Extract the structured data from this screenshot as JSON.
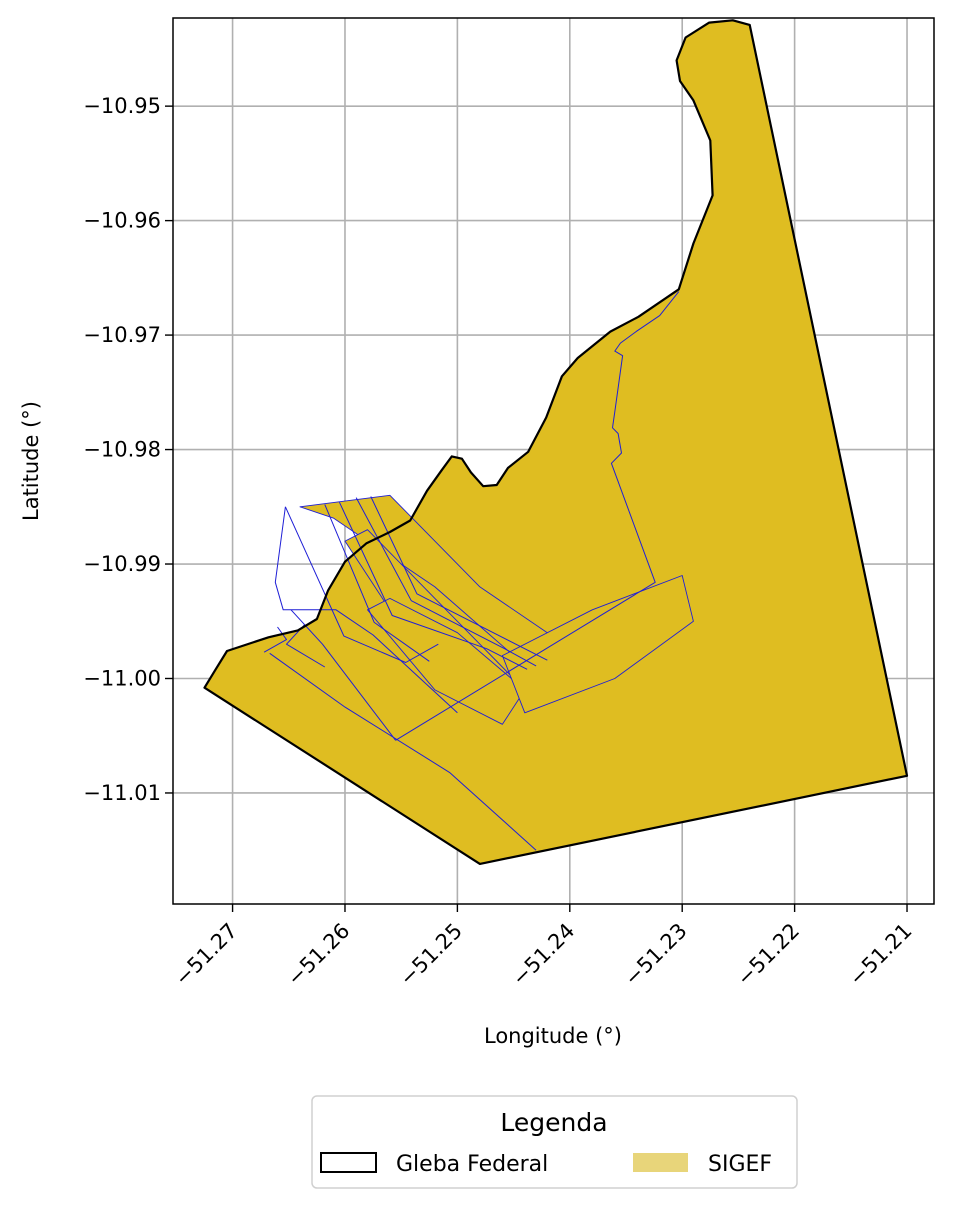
{
  "chart_data": {
    "type": "map",
    "xlabel": "Longitude (°)",
    "ylabel": "Latitude (°)",
    "xlim": [
      -51.2753,
      -51.2076
    ],
    "ylim": [
      -11.0197,
      -10.9423
    ],
    "grid": true,
    "x_ticks": [
      -51.27,
      -51.26,
      -51.25,
      -51.24,
      -51.23,
      -51.22,
      -51.21
    ],
    "x_tick_labels": [
      "−51.27",
      "−51.26",
      "−51.25",
      "−51.24",
      "−51.23",
      "−51.22",
      "−51.21"
    ],
    "y_ticks": [
      -10.95,
      -10.96,
      -10.97,
      -10.98,
      -10.99,
      -11.0,
      -11.01
    ],
    "y_tick_labels": [
      "−10.95",
      "−10.96",
      "−10.97",
      "−10.98",
      "−10.99",
      "−11.00",
      "−11.01"
    ],
    "legend": {
      "title": "Legenda",
      "placement": "bottom-center",
      "entries": [
        {
          "label": "Gleba Federal",
          "style": "outline",
          "color": "#000000"
        },
        {
          "label": "SIGEF",
          "style": "fill",
          "color": "#e8d57a"
        }
      ]
    },
    "layers": [
      {
        "name": "SIGEF",
        "fill": "#dfbd21",
        "parcel_edge_color": "#1f1fd6",
        "parcels": [
          [
            [
              -51.2725,
              -11.0008
            ],
            [
              -51.2715,
              -10.9992
            ],
            [
              -51.2705,
              -10.9976
            ],
            [
              -51.2668,
              -10.9964
            ],
            [
              -51.2642,
              -10.9958
            ],
            [
              -51.2625,
              -10.9948
            ],
            [
              -51.2615,
              -10.9923
            ],
            [
              -51.26,
              -10.9898
            ],
            [
              -51.2581,
              -10.9882
            ],
            [
              -51.256,
              -10.9872
            ],
            [
              -51.2542,
              -10.9862
            ],
            [
              -51.2527,
              -10.9836
            ],
            [
              -51.2514,
              -10.9818
            ],
            [
              -51.2505,
              -10.9806
            ],
            [
              -51.2496,
              -10.9808
            ],
            [
              -51.2488,
              -10.982
            ],
            [
              -51.2477,
              -10.9832
            ],
            [
              -51.2465,
              -10.9831
            ],
            [
              -51.2455,
              -10.9816
            ],
            [
              -51.2437,
              -10.9802
            ],
            [
              -51.2421,
              -10.9772
            ],
            [
              -51.2407,
              -10.9736
            ],
            [
              -51.2393,
              -10.972
            ],
            [
              -51.2364,
              -10.9697
            ],
            [
              -51.2339,
              -10.9684
            ],
            [
              -51.2303,
              -10.966
            ],
            [
              -51.229,
              -10.962
            ],
            [
              -51.2273,
              -10.9578
            ],
            [
              -51.2275,
              -10.953
            ],
            [
              -51.229,
              -10.9495
            ],
            [
              -51.2302,
              -10.9478
            ],
            [
              -51.2305,
              -10.946
            ],
            [
              -51.2297,
              -10.944
            ],
            [
              -51.2276,
              -10.9427
            ],
            [
              -51.2255,
              -10.9425
            ],
            [
              -51.224,
              -10.9429
            ],
            [
              -51.21,
              -11.0085
            ],
            [
              -51.248,
              -11.0162
            ],
            [
              -51.2725,
              -11.0008
            ]
          ],
          [
            [
              -51.264,
              -10.985
            ],
            [
              -51.261,
              -10.986
            ],
            [
              -51.252,
              -10.992
            ],
            [
              -51.245,
              -10.998
            ],
            [
              -51.242,
              -10.996
            ],
            [
              -51.248,
              -10.992
            ],
            [
              -51.256,
              -10.984
            ],
            [
              -51.264,
              -10.985
            ]
          ],
          [
            [
              -51.26,
              -10.988
            ],
            [
              -51.254,
              -10.997
            ],
            [
              -51.247,
              -11.001
            ],
            [
              -51.245,
              -11.0
            ],
            [
              -51.252,
              -10.993
            ],
            [
              -51.258,
              -10.987
            ],
            [
              -51.26,
              -10.988
            ]
          ],
          [
            [
              -51.258,
              -10.994
            ],
            [
              -51.252,
              -11.001
            ],
            [
              -51.246,
              -11.004
            ],
            [
              -51.244,
              -11.001
            ],
            [
              -51.25,
              -10.996
            ],
            [
              -51.256,
              -10.993
            ],
            [
              -51.258,
              -10.994
            ]
          ],
          [
            [
              -51.246,
              -10.998
            ],
            [
              -51.238,
              -10.994
            ],
            [
              -51.23,
              -10.991
            ],
            [
              -51.229,
              -10.995
            ],
            [
              -51.236,
              -11.0
            ],
            [
              -51.244,
              -11.003
            ],
            [
              -51.246,
              -10.998
            ]
          ]
        ],
        "sub_lines": [
          [
            [
              -51.2653,
              -10.985
            ],
            [
              -51.2601,
              -10.9963
            ],
            [
              -51.2546,
              -10.9986
            ],
            [
              -51.2517,
              -10.997
            ]
          ],
          [
            [
              -51.2618,
              -10.9848
            ],
            [
              -51.2574,
              -10.9951
            ],
            [
              -51.2525,
              -10.9985
            ]
          ],
          [
            [
              -51.2605,
              -10.9846
            ],
            [
              -51.2558,
              -10.9945
            ],
            [
              -51.2494,
              -10.9967
            ],
            [
              -51.2474,
              -10.9974
            ],
            [
              -51.2438,
              -10.9992
            ]
          ],
          [
            [
              -51.259,
              -10.9842
            ],
            [
              -51.2541,
              -10.9932
            ],
            [
              -51.2458,
              -10.9974
            ],
            [
              -51.243,
              -10.9989
            ]
          ],
          [
            [
              -51.2577,
              -10.9841
            ],
            [
              -51.2536,
              -10.9926
            ],
            [
              -51.242,
              -10.9984
            ]
          ],
          [
            [
              -51.2555,
              -11.0054
            ],
            [
              -51.2324,
              -10.9916
            ],
            [
              -51.2363,
              -10.9812
            ],
            [
              -51.2354,
              -10.9803
            ],
            [
              -51.2357,
              -10.9786
            ],
            [
              -51.2362,
              -10.9781
            ],
            [
              -51.236,
              -10.9767
            ],
            [
              -51.2353,
              -10.9718
            ],
            [
              -51.236,
              -10.9714
            ],
            [
              -51.2355,
              -10.9707
            ],
            [
              -51.2341,
              -10.9697
            ],
            [
              -51.232,
              -10.9683
            ],
            [
              -51.2303,
              -10.9662
            ]
          ],
          [
            [
              -51.2653,
              -10.985
            ],
            [
              -51.2662,
              -10.9916
            ],
            [
              -51.2655,
              -10.994
            ],
            [
              -51.2608,
              -10.994
            ],
            [
              -51.2575,
              -10.9962
            ],
            [
              -51.25,
              -11.003
            ]
          ],
          [
            [
              -51.2648,
              -10.994
            ],
            [
              -51.262,
              -10.997
            ],
            [
              -51.2555,
              -11.0054
            ]
          ],
          [
            [
              -51.2618,
              -10.999
            ],
            [
              -51.2652,
              -10.997
            ],
            [
              -51.2636,
              -10.9953
            ]
          ],
          [
            [
              -51.2672,
              -10.9977
            ],
            [
              -51.2652,
              -10.9966
            ],
            [
              -51.266,
              -10.9955
            ]
          ],
          [
            [
              -51.2667,
              -10.9978
            ],
            [
              -51.26,
              -11.0025
            ],
            [
              -51.2507,
              -11.0082
            ],
            [
              -51.243,
              -11.015
            ]
          ]
        ]
      },
      {
        "name": "Gleba Federal",
        "edge_color": "#000000",
        "boundary": [
          [
            -51.2725,
            -11.0008
          ],
          [
            -51.2715,
            -10.9992
          ],
          [
            -51.2705,
            -10.9976
          ],
          [
            -51.2668,
            -10.9964
          ],
          [
            -51.2642,
            -10.9958
          ],
          [
            -51.2625,
            -10.9948
          ],
          [
            -51.2615,
            -10.9923
          ],
          [
            -51.26,
            -10.9898
          ],
          [
            -51.2581,
            -10.9882
          ],
          [
            -51.256,
            -10.9872
          ],
          [
            -51.2542,
            -10.9862
          ],
          [
            -51.2527,
            -10.9836
          ],
          [
            -51.2514,
            -10.9818
          ],
          [
            -51.2505,
            -10.9806
          ],
          [
            -51.2496,
            -10.9808
          ],
          [
            -51.2488,
            -10.982
          ],
          [
            -51.2477,
            -10.9832
          ],
          [
            -51.2465,
            -10.9831
          ],
          [
            -51.2455,
            -10.9816
          ],
          [
            -51.2437,
            -10.9802
          ],
          [
            -51.2421,
            -10.9772
          ],
          [
            -51.2407,
            -10.9736
          ],
          [
            -51.2393,
            -10.972
          ],
          [
            -51.2364,
            -10.9697
          ],
          [
            -51.2339,
            -10.9684
          ],
          [
            -51.2303,
            -10.966
          ],
          [
            -51.229,
            -10.962
          ],
          [
            -51.2273,
            -10.9578
          ],
          [
            -51.2275,
            -10.953
          ],
          [
            -51.229,
            -10.9495
          ],
          [
            -51.2302,
            -10.9478
          ],
          [
            -51.2305,
            -10.946
          ],
          [
            -51.2297,
            -10.944
          ],
          [
            -51.2276,
            -10.9427
          ],
          [
            -51.2255,
            -10.9425
          ],
          [
            -51.224,
            -10.9429
          ],
          [
            -51.21,
            -11.0085
          ],
          [
            -51.248,
            -11.0162
          ],
          [
            -51.2725,
            -11.0008
          ]
        ]
      }
    ]
  }
}
